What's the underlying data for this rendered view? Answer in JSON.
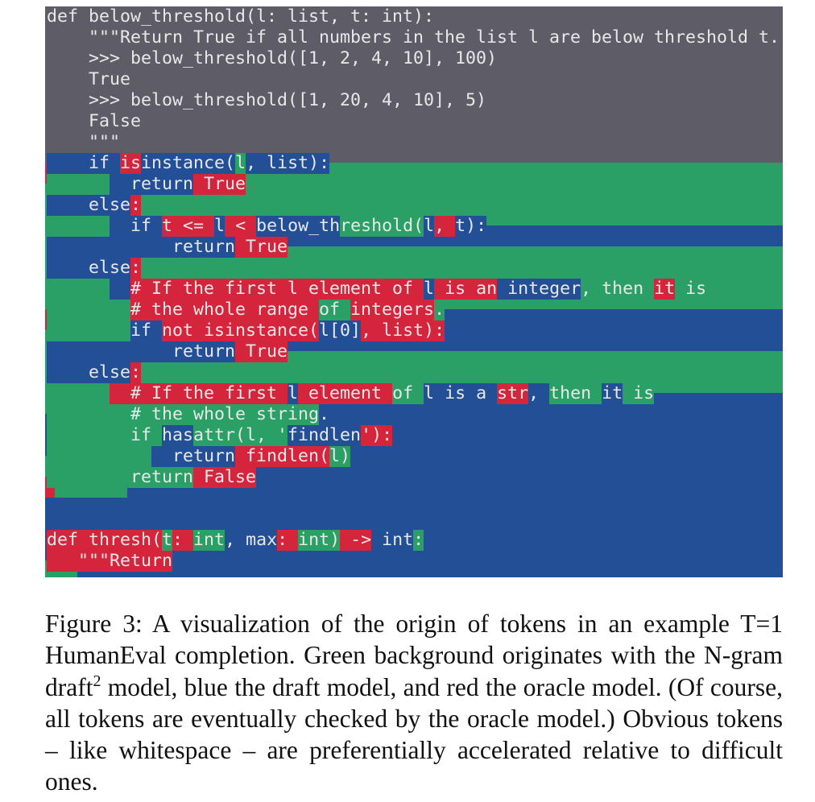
{
  "colors": {
    "prompt": "#5e5c66",
    "ngram": "#2aa066",
    "draft": "#234f96",
    "oracle": "#d5253d",
    "code_text": "#e8e8e8"
  },
  "legend": {
    "green": "N-gram draft model",
    "blue": "draft model",
    "red": "oracle model"
  },
  "code_lines": [
    {
      "row": 0,
      "segs": [
        {
          "t": "def below_threshold(l: list, t: int):",
          "c": "prompt"
        }
      ]
    },
    {
      "row": 1,
      "segs": [
        {
          "t": "    \"\"\"Return True if all numbers in the list l are below threshold t.",
          "c": "prompt"
        }
      ]
    },
    {
      "row": 2,
      "segs": [
        {
          "t": "    >>> below_threshold([1, 2, 4, 10], 100)",
          "c": "prompt"
        }
      ]
    },
    {
      "row": 3,
      "segs": [
        {
          "t": "    True",
          "c": "prompt"
        }
      ]
    },
    {
      "row": 4,
      "segs": [
        {
          "t": "    >>> below_threshold([1, 20, 4, 10], 5)",
          "c": "prompt"
        }
      ]
    },
    {
      "row": 5,
      "segs": [
        {
          "t": "    False",
          "c": "prompt"
        }
      ]
    },
    {
      "row": 6,
      "segs": [
        {
          "t": "    \"\"\"",
          "c": "prompt"
        }
      ]
    },
    {
      "row": 7,
      "segs": [
        {
          "t": "  ",
          "c": "draft"
        },
        {
          "t": "  if ",
          "c": "draft"
        },
        {
          "t": "is",
          "c": "oracle"
        },
        {
          "t": "instance(",
          "c": "draft"
        },
        {
          "t": "l",
          "c": "ngram"
        },
        {
          "t": ", list):",
          "c": "draft"
        }
      ]
    },
    {
      "row": 8,
      "segs": [
        {
          "t": "      ",
          "c": "ngram"
        },
        {
          "t": "  return",
          "c": "draft"
        },
        {
          "t": " True",
          "c": "oracle"
        }
      ]
    },
    {
      "row": 9,
      "segs": [
        {
          "t": "    else",
          "c": "draft"
        },
        {
          "t": ":",
          "c": "oracle"
        }
      ]
    },
    {
      "row": 10,
      "segs": [
        {
          "t": "      ",
          "c": "ngram"
        },
        {
          "t": "  if ",
          "c": "draft"
        },
        {
          "t": "t <= ",
          "c": "oracle"
        },
        {
          "t": "l",
          "c": "draft"
        },
        {
          "t": " < ",
          "c": "oracle"
        },
        {
          "t": "below_th",
          "c": "draft"
        },
        {
          "t": "reshold(",
          "c": "ngram"
        },
        {
          "t": "l",
          "c": "draft"
        },
        {
          "t": ", ",
          "c": "oracle"
        },
        {
          "t": "t):",
          "c": "draft"
        }
      ]
    },
    {
      "row": 11,
      "segs": [
        {
          "t": "            return",
          "c": "draft"
        },
        {
          "t": " True",
          "c": "oracle"
        }
      ]
    },
    {
      "row": 12,
      "segs": [
        {
          "t": "    else",
          "c": "draft"
        },
        {
          "t": ":",
          "c": "oracle"
        }
      ]
    },
    {
      "row": 13,
      "segs": [
        {
          "t": "      ",
          "c": "ngram"
        },
        {
          "t": "  ",
          "c": "draft"
        },
        {
          "t": "# If the first l element of ",
          "c": "oracle"
        },
        {
          "t": "l",
          "c": "draft"
        },
        {
          "t": " is an",
          "c": "oracle"
        },
        {
          "t": " integer",
          "c": "draft"
        },
        {
          "t": ", then ",
          "c": "ngram"
        },
        {
          "t": "it",
          "c": "oracle"
        },
        {
          "t": " is",
          "c": "ngram"
        }
      ]
    },
    {
      "row": 14,
      "segs": [
        {
          "t": "        ",
          "c": "ngram"
        },
        {
          "t": "# the whole range ",
          "c": "oracle"
        },
        {
          "t": "of ",
          "c": "ngram"
        },
        {
          "t": "integers",
          "c": "oracle"
        },
        {
          "t": ".",
          "c": "ngram"
        }
      ]
    },
    {
      "row": 15,
      "segs": [
        {
          "t": "        ",
          "c": "ngram"
        },
        {
          "t": "if ",
          "c": "draft"
        },
        {
          "t": "not isinstance(",
          "c": "oracle"
        },
        {
          "t": "l[0]",
          "c": "draft"
        },
        {
          "t": ", list):",
          "c": "oracle"
        }
      ]
    },
    {
      "row": 16,
      "segs": [
        {
          "t": "            return",
          "c": "draft"
        },
        {
          "t": " True",
          "c": "oracle"
        }
      ]
    },
    {
      "row": 17,
      "segs": [
        {
          "t": "    else",
          "c": "draft"
        },
        {
          "t": ":",
          "c": "oracle"
        }
      ]
    },
    {
      "row": 18,
      "segs": [
        {
          "t": "      ",
          "c": "ngram"
        },
        {
          "t": "  # If the first ",
          "c": "oracle"
        },
        {
          "t": "l",
          "c": "draft"
        },
        {
          "t": " element ",
          "c": "oracle"
        },
        {
          "t": "of ",
          "c": "ngram"
        },
        {
          "t": "l is a ",
          "c": "draft"
        },
        {
          "t": "str",
          "c": "oracle"
        },
        {
          "t": ", ",
          "c": "draft"
        },
        {
          "t": "then ",
          "c": "ngram"
        },
        {
          "t": "it",
          "c": "draft"
        },
        {
          "t": " is",
          "c": "ngram"
        }
      ]
    },
    {
      "row": 19,
      "segs": [
        {
          "t": "        # the whole string",
          "c": "ngram"
        },
        {
          "t": ".",
          "c": "draft"
        }
      ]
    },
    {
      "row": 20,
      "segs": [
        {
          "t": "        if ",
          "c": "ngram"
        },
        {
          "t": "has",
          "c": "draft"
        },
        {
          "t": "attr(l, '",
          "c": "ngram"
        },
        {
          "t": "findlen",
          "c": "draft"
        },
        {
          "t": "'):",
          "c": "oracle"
        }
      ]
    },
    {
      "row": 21,
      "segs": [
        {
          "t": "          ",
          "c": "ngram"
        },
        {
          "t": "  return",
          "c": "draft"
        },
        {
          "t": " findlen(",
          "c": "oracle"
        },
        {
          "t": "l)",
          "c": "ngram"
        }
      ]
    },
    {
      "row": 22,
      "segs": [
        {
          "t": "        return",
          "c": "ngram"
        },
        {
          "t": " False",
          "c": "oracle"
        }
      ]
    },
    {
      "row": 25,
      "segs": [
        {
          "t": "def thresh(",
          "c": "oracle"
        },
        {
          "t": "t",
          "c": "ngram"
        },
        {
          "t": ": ",
          "c": "oracle"
        },
        {
          "t": "int",
          "c": "ngram"
        },
        {
          "t": ", max",
          "c": "draft"
        },
        {
          "t": ": ",
          "c": "oracle"
        },
        {
          "t": "int)",
          "c": "ngram"
        },
        {
          "t": " ->",
          "c": "oracle"
        },
        {
          "t": " int",
          "c": "draft"
        },
        {
          "t": ":",
          "c": "ngram"
        }
      ]
    },
    {
      "row": 26,
      "segs": [
        {
          "t": "   \"\"\"Return",
          "c": "oracle"
        }
      ]
    }
  ],
  "caption": {
    "label": "Figure 3:",
    "text_before_sup": " A visualization of the origin of tokens in an example T=1 HumanEval completion. Green background originates with the N-gram draft",
    "footnote_mark": "2",
    "text_after_sup": " model, blue the draft model, and red the oracle model. (Of course, all tokens are eventually checked by the oracle model.) Obvious tokens – like whitespace – are preferentially accelerated relative to difficult ones."
  }
}
